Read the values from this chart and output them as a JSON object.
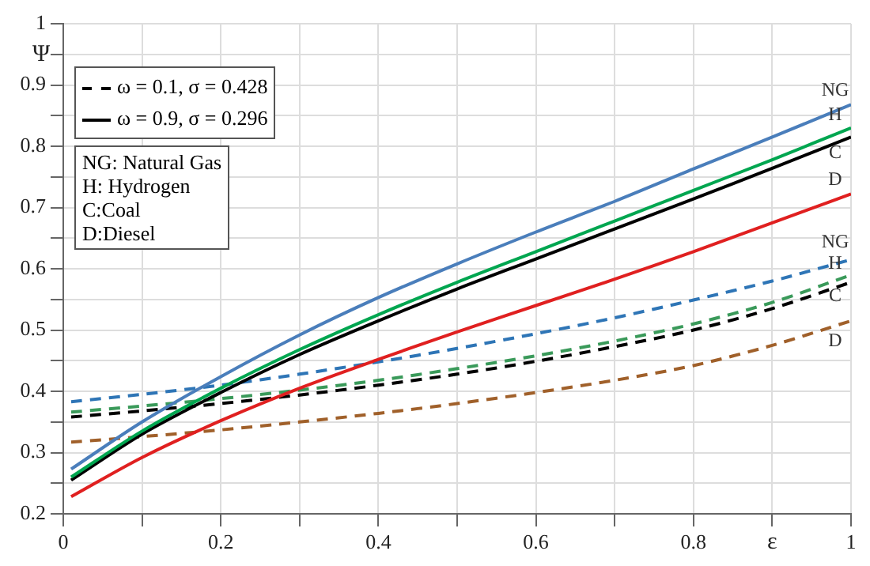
{
  "chart_data": {
    "type": "line",
    "xlabel": "ε",
    "ylabel": "Ψ",
    "x": [
      0.01,
      0.1,
      0.2,
      0.3,
      0.4,
      0.5,
      0.6,
      0.7,
      0.8,
      0.9,
      1.0
    ],
    "series": [
      {
        "color": "#4a7ebb",
        "line_style": "solid",
        "values": [
          0.273,
          0.35,
          0.424,
          0.492,
          0.553,
          0.608,
          0.66,
          0.71,
          0.763,
          0.815,
          0.868
        ]
      },
      {
        "color": "#00a650",
        "line_style": "solid",
        "values": [
          0.26,
          0.335,
          0.405,
          0.468,
          0.525,
          0.578,
          0.628,
          0.678,
          0.728,
          0.778,
          0.83
        ]
      },
      {
        "color": "#000000",
        "line_style": "solid",
        "values": [
          0.255,
          0.33,
          0.398,
          0.46,
          0.515,
          0.567,
          0.616,
          0.665,
          0.714,
          0.764,
          0.815
        ]
      },
      {
        "color": "#e02020",
        "line_style": "solid",
        "values": [
          0.228,
          0.292,
          0.352,
          0.405,
          0.452,
          0.497,
          0.54,
          0.583,
          0.628,
          0.675,
          0.722
        ]
      },
      {
        "color": "#2e75b6",
        "line_style": "dashed",
        "values": [
          0.383,
          0.395,
          0.41,
          0.428,
          0.448,
          0.47,
          0.494,
          0.52,
          0.549,
          0.58,
          0.615
        ]
      },
      {
        "color": "#3a9a5a",
        "line_style": "dashed",
        "values": [
          0.366,
          0.376,
          0.388,
          0.402,
          0.418,
          0.437,
          0.458,
          0.482,
          0.51,
          0.545,
          0.59
        ]
      },
      {
        "color": "#000000",
        "line_style": "dashed",
        "values": [
          0.358,
          0.368,
          0.38,
          0.394,
          0.41,
          0.428,
          0.449,
          0.473,
          0.5,
          0.535,
          0.578
        ]
      },
      {
        "color": "#a0602a",
        "line_style": "dashed",
        "values": [
          0.317,
          0.326,
          0.337,
          0.35,
          0.364,
          0.38,
          0.398,
          0.418,
          0.442,
          0.475,
          0.515
        ]
      }
    ],
    "xlim": [
      0,
      1
    ],
    "ylim": [
      0.2,
      1
    ],
    "xticks": [
      0,
      {
        "value": 0.1,
        "label": null
      },
      0.2,
      {
        "value": 0.3,
        "label": null
      },
      0.4,
      {
        "value": 0.5,
        "label": null
      },
      0.6,
      {
        "value": 0.7,
        "label": null
      },
      0.8,
      {
        "value": 0.9,
        "label": null
      },
      1
    ],
    "yticks": [
      0.2,
      {
        "value": 0.25,
        "label": null
      },
      0.3,
      {
        "value": 0.35,
        "label": null
      },
      0.4,
      {
        "value": 0.45,
        "label": null
      },
      0.5,
      {
        "value": 0.55,
        "label": null
      },
      0.6,
      {
        "value": 0.65,
        "label": null
      },
      0.7,
      {
        "value": 0.75,
        "label": null
      },
      0.8,
      {
        "value": 0.85,
        "label": null
      },
      0.9,
      {
        "value": 0.95,
        "label": null
      },
      1
    ],
    "grid": true,
    "marker": "none",
    "annotations": [
      "ω = 0.1, σ = 0.428",
      "ω = 0.9, σ = 0.296",
      "NG: Natural Gas",
      "H: Hydrogen",
      "C:Coal",
      "D:Diesel",
      "NG",
      "H",
      "C",
      "D",
      "NG",
      "H",
      "C",
      "D"
    ]
  }
}
